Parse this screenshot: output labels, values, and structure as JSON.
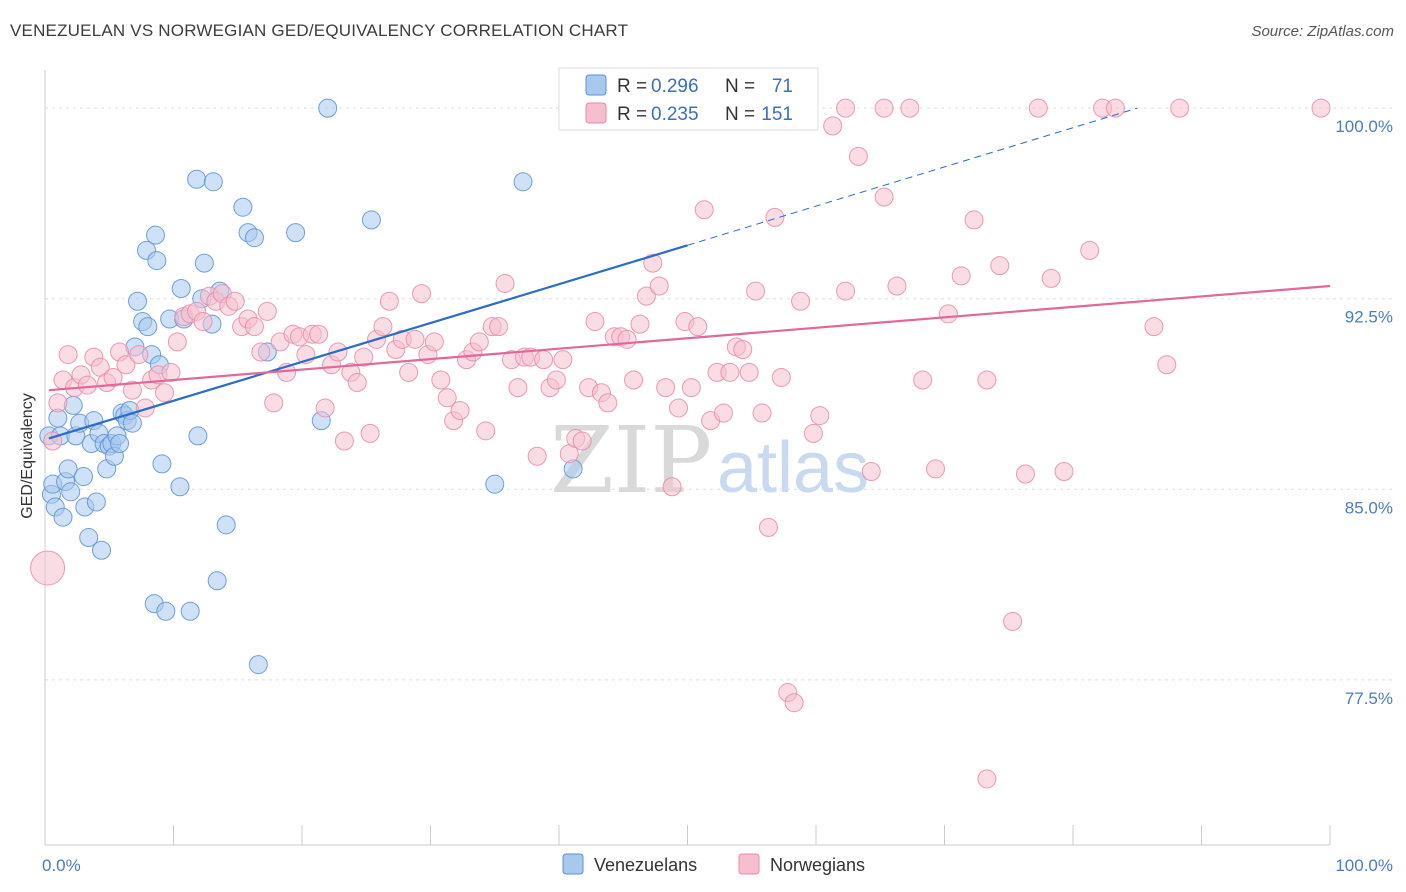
{
  "title": "VENEZUELAN VS NORWEGIAN GED/EQUIVALENCY CORRELATION CHART",
  "source": "Source: ZipAtlas.com",
  "watermark": {
    "part1": "ZIP",
    "part2": "atlas"
  },
  "colors": {
    "venezuelans_fill": "#a8c8ee",
    "venezuelans_stroke": "#5b8fd6",
    "venezuelans_line": "#2a6cc8",
    "norwegians_fill": "#f6bfd0",
    "norwegians_stroke": "#e889a8",
    "norwegians_line": "#e2689a",
    "grid": "#dddddd",
    "axis_text": "#4a7cc4"
  },
  "legend": {
    "rows": [
      {
        "r_label": "R =",
        "r_value": "0.296",
        "n_label": "N =",
        "n_value": "71"
      },
      {
        "r_label": "R =",
        "r_value": "0.235",
        "n_label": "N =",
        "n_value": "151"
      }
    ]
  },
  "chart_data": {
    "type": "scatter",
    "ylabel": "GED/Equivalency",
    "xlim": [
      0,
      100
    ],
    "ylim": [
      71.0,
      101.5
    ],
    "y_ticks": [
      {
        "value": 77.5,
        "label": "77.5%"
      },
      {
        "value": 85.0,
        "label": "85.0%"
      },
      {
        "value": 92.5,
        "label": "92.5%"
      },
      {
        "value": 100.0,
        "label": "100.0%"
      }
    ],
    "x_tick_labels": [
      {
        "value": 0,
        "label": "0.0%"
      },
      {
        "value": 100,
        "label": "100.0%"
      }
    ],
    "grid": true,
    "legend_position": "top-center",
    "series": [
      {
        "name": "Venezuelans",
        "trend": {
          "x0": 0.3,
          "y0": 87.0,
          "x1": 50.0,
          "y1": 94.6,
          "dashed_to_x": 85.0,
          "dashed_to_y": 100.0
        },
        "points": [
          [
            0.3,
            87.1
          ],
          [
            0.5,
            84.8
          ],
          [
            0.6,
            85.2
          ],
          [
            0.8,
            84.3
          ],
          [
            1.0,
            87.8
          ],
          [
            1.2,
            87.1
          ],
          [
            1.4,
            83.9
          ],
          [
            1.6,
            85.3
          ],
          [
            1.8,
            85.8
          ],
          [
            2.0,
            84.9
          ],
          [
            2.2,
            88.3
          ],
          [
            2.4,
            87.1
          ],
          [
            2.7,
            87.6
          ],
          [
            3.0,
            85.5
          ],
          [
            3.1,
            84.3
          ],
          [
            3.4,
            83.1
          ],
          [
            3.6,
            86.8
          ],
          [
            3.8,
            87.7
          ],
          [
            4.0,
            84.5
          ],
          [
            4.2,
            87.2
          ],
          [
            4.4,
            82.6
          ],
          [
            4.6,
            86.8
          ],
          [
            4.8,
            85.8
          ],
          [
            5.0,
            86.7
          ],
          [
            5.2,
            86.8
          ],
          [
            5.4,
            86.3
          ],
          [
            5.6,
            87.1
          ],
          [
            5.8,
            86.8
          ],
          [
            6.0,
            88.0
          ],
          [
            6.2,
            87.9
          ],
          [
            6.4,
            87.7
          ],
          [
            6.6,
            88.1
          ],
          [
            6.8,
            87.6
          ],
          [
            7.0,
            90.6
          ],
          [
            7.2,
            92.4
          ],
          [
            7.6,
            91.6
          ],
          [
            7.9,
            94.4
          ],
          [
            8.0,
            91.4
          ],
          [
            8.3,
            90.3
          ],
          [
            8.5,
            80.5
          ],
          [
            8.6,
            95.0
          ],
          [
            8.7,
            94.0
          ],
          [
            8.9,
            89.9
          ],
          [
            9.1,
            86.0
          ],
          [
            9.4,
            80.2
          ],
          [
            9.7,
            91.7
          ],
          [
            10.5,
            85.1
          ],
          [
            10.6,
            92.9
          ],
          [
            10.8,
            91.7
          ],
          [
            11.3,
            80.2
          ],
          [
            11.8,
            97.2
          ],
          [
            11.9,
            87.1
          ],
          [
            12.2,
            92.5
          ],
          [
            12.4,
            93.9
          ],
          [
            13.0,
            91.5
          ],
          [
            13.1,
            97.1
          ],
          [
            13.4,
            81.4
          ],
          [
            13.6,
            92.8
          ],
          [
            14.1,
            83.6
          ],
          [
            15.4,
            96.1
          ],
          [
            15.8,
            95.1
          ],
          [
            16.3,
            94.9
          ],
          [
            16.6,
            78.1
          ],
          [
            17.3,
            90.4
          ],
          [
            19.5,
            95.1
          ],
          [
            21.5,
            87.7
          ],
          [
            22.0,
            100.0
          ],
          [
            25.4,
            95.6
          ],
          [
            35.0,
            85.2
          ],
          [
            37.2,
            97.1
          ],
          [
            41.1,
            85.8
          ]
        ]
      },
      {
        "name": "Norwegians",
        "trend": {
          "x0": 0.3,
          "y0": 88.9,
          "x1": 100.0,
          "y1": 93.0
        },
        "points": [
          [
            0.2,
            81.9
          ],
          [
            0.6,
            86.9
          ],
          [
            1.0,
            88.4
          ],
          [
            1.4,
            89.3
          ],
          [
            1.8,
            90.3
          ],
          [
            2.3,
            89.0
          ],
          [
            2.8,
            89.5
          ],
          [
            3.3,
            89.1
          ],
          [
            3.8,
            90.2
          ],
          [
            4.3,
            89.8
          ],
          [
            4.8,
            89.2
          ],
          [
            5.3,
            89.4
          ],
          [
            5.8,
            90.4
          ],
          [
            6.3,
            89.9
          ],
          [
            6.8,
            88.9
          ],
          [
            7.3,
            90.3
          ],
          [
            7.8,
            88.2
          ],
          [
            8.3,
            89.3
          ],
          [
            8.8,
            89.5
          ],
          [
            9.3,
            88.8
          ],
          [
            9.8,
            89.6
          ],
          [
            10.3,
            90.8
          ],
          [
            10.8,
            91.8
          ],
          [
            11.3,
            91.9
          ],
          [
            11.8,
            92.0
          ],
          [
            12.3,
            91.6
          ],
          [
            12.8,
            92.6
          ],
          [
            13.3,
            92.4
          ],
          [
            13.8,
            92.7
          ],
          [
            14.3,
            92.2
          ],
          [
            14.8,
            92.4
          ],
          [
            15.3,
            91.4
          ],
          [
            15.8,
            91.7
          ],
          [
            16.3,
            91.4
          ],
          [
            16.8,
            90.4
          ],
          [
            17.3,
            92.0
          ],
          [
            17.8,
            88.4
          ],
          [
            18.3,
            90.8
          ],
          [
            18.8,
            89.6
          ],
          [
            19.3,
            91.1
          ],
          [
            19.8,
            91.0
          ],
          [
            20.3,
            90.3
          ],
          [
            20.8,
            91.1
          ],
          [
            21.3,
            91.1
          ],
          [
            21.8,
            88.2
          ],
          [
            22.3,
            89.9
          ],
          [
            22.8,
            90.4
          ],
          [
            23.3,
            86.9
          ],
          [
            23.8,
            89.6
          ],
          [
            24.3,
            89.2
          ],
          [
            24.8,
            90.2
          ],
          [
            25.3,
            87.2
          ],
          [
            25.8,
            90.9
          ],
          [
            26.3,
            91.4
          ],
          [
            26.8,
            92.4
          ],
          [
            27.3,
            90.5
          ],
          [
            27.8,
            90.9
          ],
          [
            28.3,
            89.6
          ],
          [
            28.8,
            90.9
          ],
          [
            29.3,
            92.7
          ],
          [
            29.8,
            90.3
          ],
          [
            30.3,
            90.8
          ],
          [
            30.8,
            89.3
          ],
          [
            31.3,
            88.6
          ],
          [
            31.8,
            87.7
          ],
          [
            32.3,
            88.1
          ],
          [
            32.8,
            90.1
          ],
          [
            33.3,
            90.4
          ],
          [
            33.8,
            90.8
          ],
          [
            34.3,
            87.3
          ],
          [
            34.8,
            91.4
          ],
          [
            35.3,
            91.4
          ],
          [
            35.8,
            93.1
          ],
          [
            36.3,
            90.1
          ],
          [
            36.8,
            89.0
          ],
          [
            37.3,
            90.2
          ],
          [
            37.8,
            90.2
          ],
          [
            38.3,
            86.3
          ],
          [
            38.8,
            90.1
          ],
          [
            39.3,
            89.0
          ],
          [
            39.8,
            89.3
          ],
          [
            40.3,
            90.1
          ],
          [
            40.8,
            86.4
          ],
          [
            41.3,
            87.0
          ],
          [
            41.8,
            86.9
          ],
          [
            42.3,
            89.0
          ],
          [
            42.8,
            91.6
          ],
          [
            43.3,
            88.8
          ],
          [
            43.8,
            88.4
          ],
          [
            44.3,
            91.0
          ],
          [
            44.8,
            91.0
          ],
          [
            45.3,
            90.9
          ],
          [
            45.8,
            89.3
          ],
          [
            46.3,
            91.5
          ],
          [
            46.8,
            92.6
          ],
          [
            47.3,
            93.9
          ],
          [
            47.8,
            93.0
          ],
          [
            48.3,
            89.0
          ],
          [
            48.8,
            85.1
          ],
          [
            49.3,
            88.2
          ],
          [
            49.8,
            91.6
          ],
          [
            50.3,
            89.0
          ],
          [
            50.8,
            91.4
          ],
          [
            51.3,
            96.0
          ],
          [
            51.8,
            87.7
          ],
          [
            52.3,
            89.6
          ],
          [
            52.8,
            88.0
          ],
          [
            53.3,
            89.6
          ],
          [
            53.8,
            90.6
          ],
          [
            54.3,
            90.5
          ],
          [
            54.8,
            89.6
          ],
          [
            55.3,
            92.8
          ],
          [
            55.8,
            88.0
          ],
          [
            56.3,
            83.5
          ],
          [
            56.8,
            95.7
          ],
          [
            57.3,
            89.4
          ],
          [
            57.8,
            77.0
          ],
          [
            58.3,
            76.6
          ],
          [
            58.8,
            92.4
          ],
          [
            59.3,
            100.0
          ],
          [
            59.8,
            87.2
          ],
          [
            60.3,
            87.9
          ],
          [
            61.3,
            99.3
          ],
          [
            62.3,
            92.8
          ],
          [
            62.3,
            100.0
          ],
          [
            63.3,
            98.1
          ],
          [
            64.3,
            85.7
          ],
          [
            65.3,
            96.5
          ],
          [
            65.3,
            100.0
          ],
          [
            66.3,
            93.0
          ],
          [
            67.3,
            100.0
          ],
          [
            68.3,
            89.3
          ],
          [
            69.3,
            85.8
          ],
          [
            70.3,
            91.9
          ],
          [
            71.3,
            93.4
          ],
          [
            72.3,
            95.6
          ],
          [
            73.3,
            73.6
          ],
          [
            74.3,
            93.8
          ],
          [
            75.3,
            79.8
          ],
          [
            76.3,
            85.6
          ],
          [
            77.3,
            100.0
          ],
          [
            78.3,
            93.3
          ],
          [
            79.3,
            85.7
          ],
          [
            81.3,
            94.4
          ],
          [
            82.3,
            100.0
          ],
          [
            83.3,
            100.0
          ],
          [
            86.3,
            91.4
          ],
          [
            87.3,
            89.9
          ],
          [
            88.3,
            100.0
          ],
          [
            99.3,
            100.0
          ],
          [
            73.3,
            89.3
          ]
        ]
      }
    ]
  },
  "bottom_legend": [
    {
      "label": "Venezuelans"
    },
    {
      "label": "Norwegians"
    }
  ]
}
